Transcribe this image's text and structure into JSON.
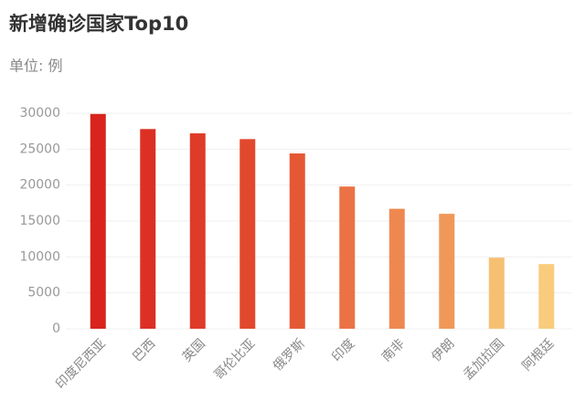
{
  "chart_data": {
    "type": "bar",
    "title": "新增确诊国家Top10",
    "subtitle": "单位: 例",
    "categories": [
      "印度尼西亚",
      "巴西",
      "英国",
      "哥伦比亚",
      "俄罗斯",
      "印度",
      "南非",
      "伊朗",
      "孟加拉国",
      "阿根廷"
    ],
    "values": [
      29900,
      27800,
      27200,
      26400,
      24400,
      19800,
      16700,
      16000,
      9900,
      9000
    ],
    "colors": [
      "#d8241d",
      "#dc3024",
      "#df3b29",
      "#e2482e",
      "#e55834",
      "#eb7244",
      "#ee8850",
      "#f09858",
      "#f6c073",
      "#f8cc7c"
    ],
    "ylim": [
      0,
      30000
    ],
    "yticks": [
      0,
      5000,
      10000,
      15000,
      20000,
      25000,
      30000
    ],
    "grid": true
  }
}
